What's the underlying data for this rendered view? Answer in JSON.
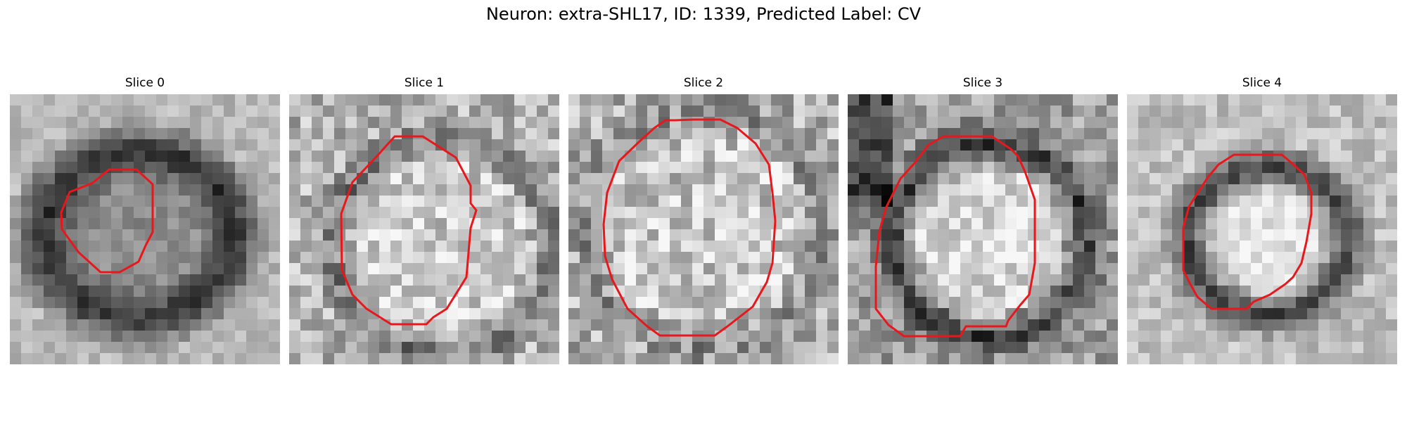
{
  "figure": {
    "title": "Neuron: extra-SHL17, ID: 1339, Predicted Label: CV",
    "contour_color": "#e8171c"
  },
  "slices": [
    {
      "label": "Slice 0",
      "ring": "thick-dark",
      "center_brightness": "medium"
    },
    {
      "label": "Slice 1",
      "ring": "thin-dark",
      "center_brightness": "bright"
    },
    {
      "label": "Slice 2",
      "ring": "faint",
      "center_brightness": "bright"
    },
    {
      "label": "Slice 3",
      "ring": "dark",
      "center_brightness": "bright"
    },
    {
      "label": "Slice 4",
      "ring": "dark",
      "center_brightness": "bright"
    }
  ]
}
